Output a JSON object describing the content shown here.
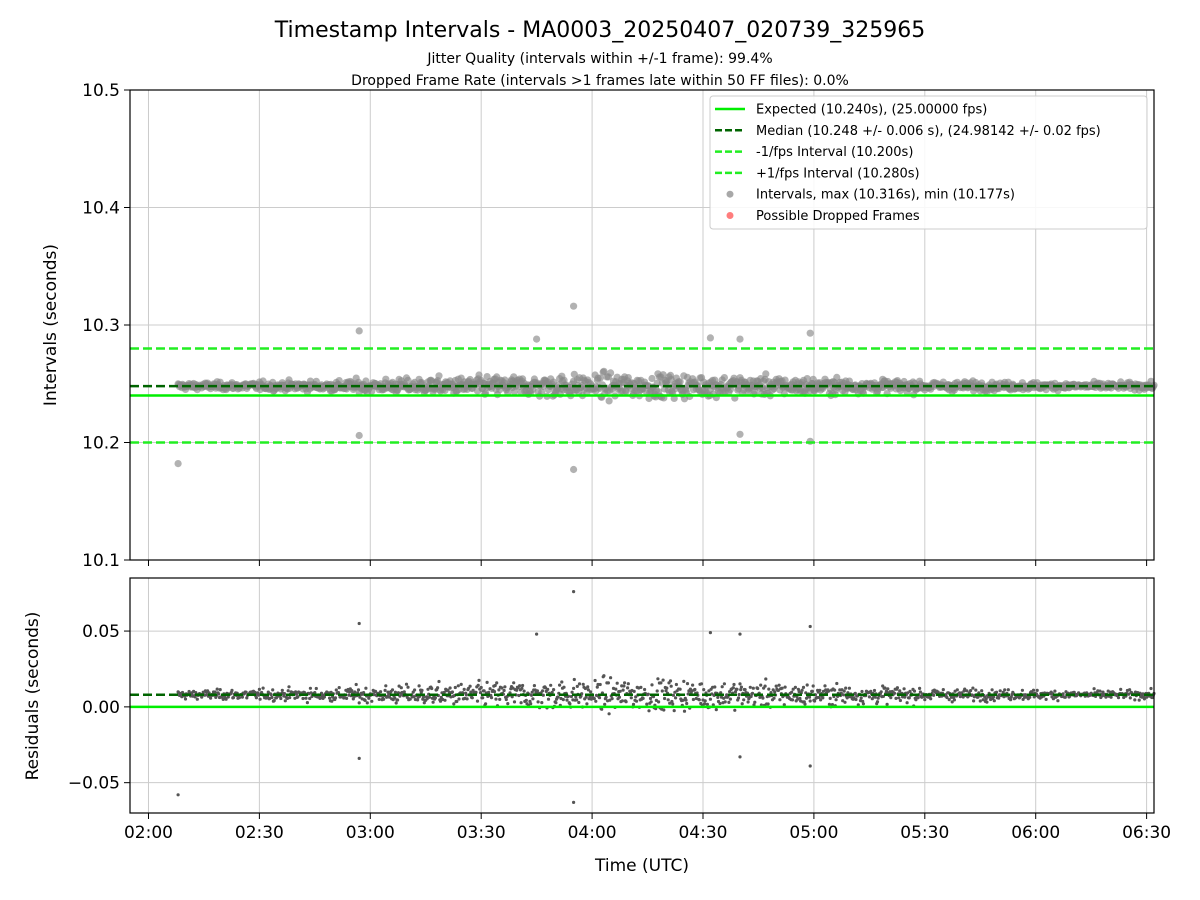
{
  "colors": {
    "expected": "#00ee00",
    "median": "#006400",
    "bounds": "#22ee22",
    "points": "#888888",
    "residual_points": "#555555",
    "dropped": "#ff6666",
    "grid": "#cccccc"
  },
  "chart_data": [
    {
      "type": "scatter",
      "title": "Timestamp Intervals - MA0003_20250407_020739_325965",
      "subtitle_lines": [
        "Jitter Quality (intervals within +/-1 frame): 99.4%",
        "Dropped Frame Rate (intervals >1 frames late within 50 FF files): 0.0%"
      ],
      "xlabel": "",
      "ylabel": "Intervals (seconds)",
      "x_range_minutes": [
        "01:55",
        "06:32"
      ],
      "ylim": [
        10.1,
        10.5
      ],
      "yticks": [
        "10.1",
        "10.2",
        "10.3",
        "10.4",
        "10.5"
      ],
      "grid": true,
      "legend_placement": "top-right",
      "legend": [
        {
          "label": "Expected (10.240s), (25.00000 fps)",
          "style": "solid",
          "color": "#00ee00"
        },
        {
          "label": "Median (10.248 +/- 0.006 s), (24.98142 +/- 0.02 fps)",
          "style": "dashed",
          "color": "#006400"
        },
        {
          "label": "-1/fps Interval (10.200s)",
          "style": "dashed",
          "color": "#22ee22"
        },
        {
          "label": "+1/fps Interval (10.280s)",
          "style": "dashed",
          "color": "#22ee22"
        },
        {
          "label": "Intervals, max (10.316s), min (10.177s)",
          "style": "marker",
          "color": "#999999"
        },
        {
          "label": "Possible Dropped Frames",
          "style": "marker",
          "color": "#ff6666"
        }
      ],
      "reference_lines": {
        "expected": 10.24,
        "median": 10.248,
        "lower": 10.2,
        "upper": 10.28
      },
      "series": [
        {
          "name": "Intervals, max (10.316s), min (10.177s)",
          "x": "02:08–06:32 (dense)",
          "y_center": 10.248,
          "y_spread": 0.01
        }
      ],
      "notable_points": [
        {
          "x": "02:08",
          "y": 10.182
        },
        {
          "x": "02:57",
          "y": 10.295
        },
        {
          "x": "02:57",
          "y": 10.206
        },
        {
          "x": "03:45",
          "y": 10.288
        },
        {
          "x": "03:55",
          "y": 10.316
        },
        {
          "x": "03:55",
          "y": 10.177
        },
        {
          "x": "04:32",
          "y": 10.289
        },
        {
          "x": "04:40",
          "y": 10.288
        },
        {
          "x": "04:40",
          "y": 10.207
        },
        {
          "x": "04:59",
          "y": 10.293
        },
        {
          "x": "04:59",
          "y": 10.201
        }
      ]
    },
    {
      "type": "scatter",
      "title": "",
      "xlabel": "Time (UTC)",
      "ylabel": "Residuals (seconds)",
      "ylim": [
        -0.07,
        0.085
      ],
      "yticks": [
        "−0.05",
        "0.00",
        "0.05"
      ],
      "xticks": [
        "02:00",
        "02:30",
        "03:00",
        "03:30",
        "04:00",
        "04:30",
        "05:00",
        "05:30",
        "06:00",
        "06:30"
      ],
      "grid": true,
      "reference_lines": {
        "zero": 0.0,
        "median": 0.008
      },
      "notable_points": [
        {
          "x": "02:08",
          "y": -0.057
        },
        {
          "x": "02:57",
          "y": 0.055
        },
        {
          "x": "02:57",
          "y": -0.033
        },
        {
          "x": "03:45",
          "y": 0.048
        },
        {
          "x": "03:55",
          "y": 0.078
        },
        {
          "x": "03:55",
          "y": -0.062
        },
        {
          "x": "04:32",
          "y": 0.049
        },
        {
          "x": "04:40",
          "y": 0.048
        },
        {
          "x": "04:40",
          "y": -0.033
        },
        {
          "x": "04:59",
          "y": 0.053
        },
        {
          "x": "04:59",
          "y": -0.038
        }
      ]
    }
  ]
}
